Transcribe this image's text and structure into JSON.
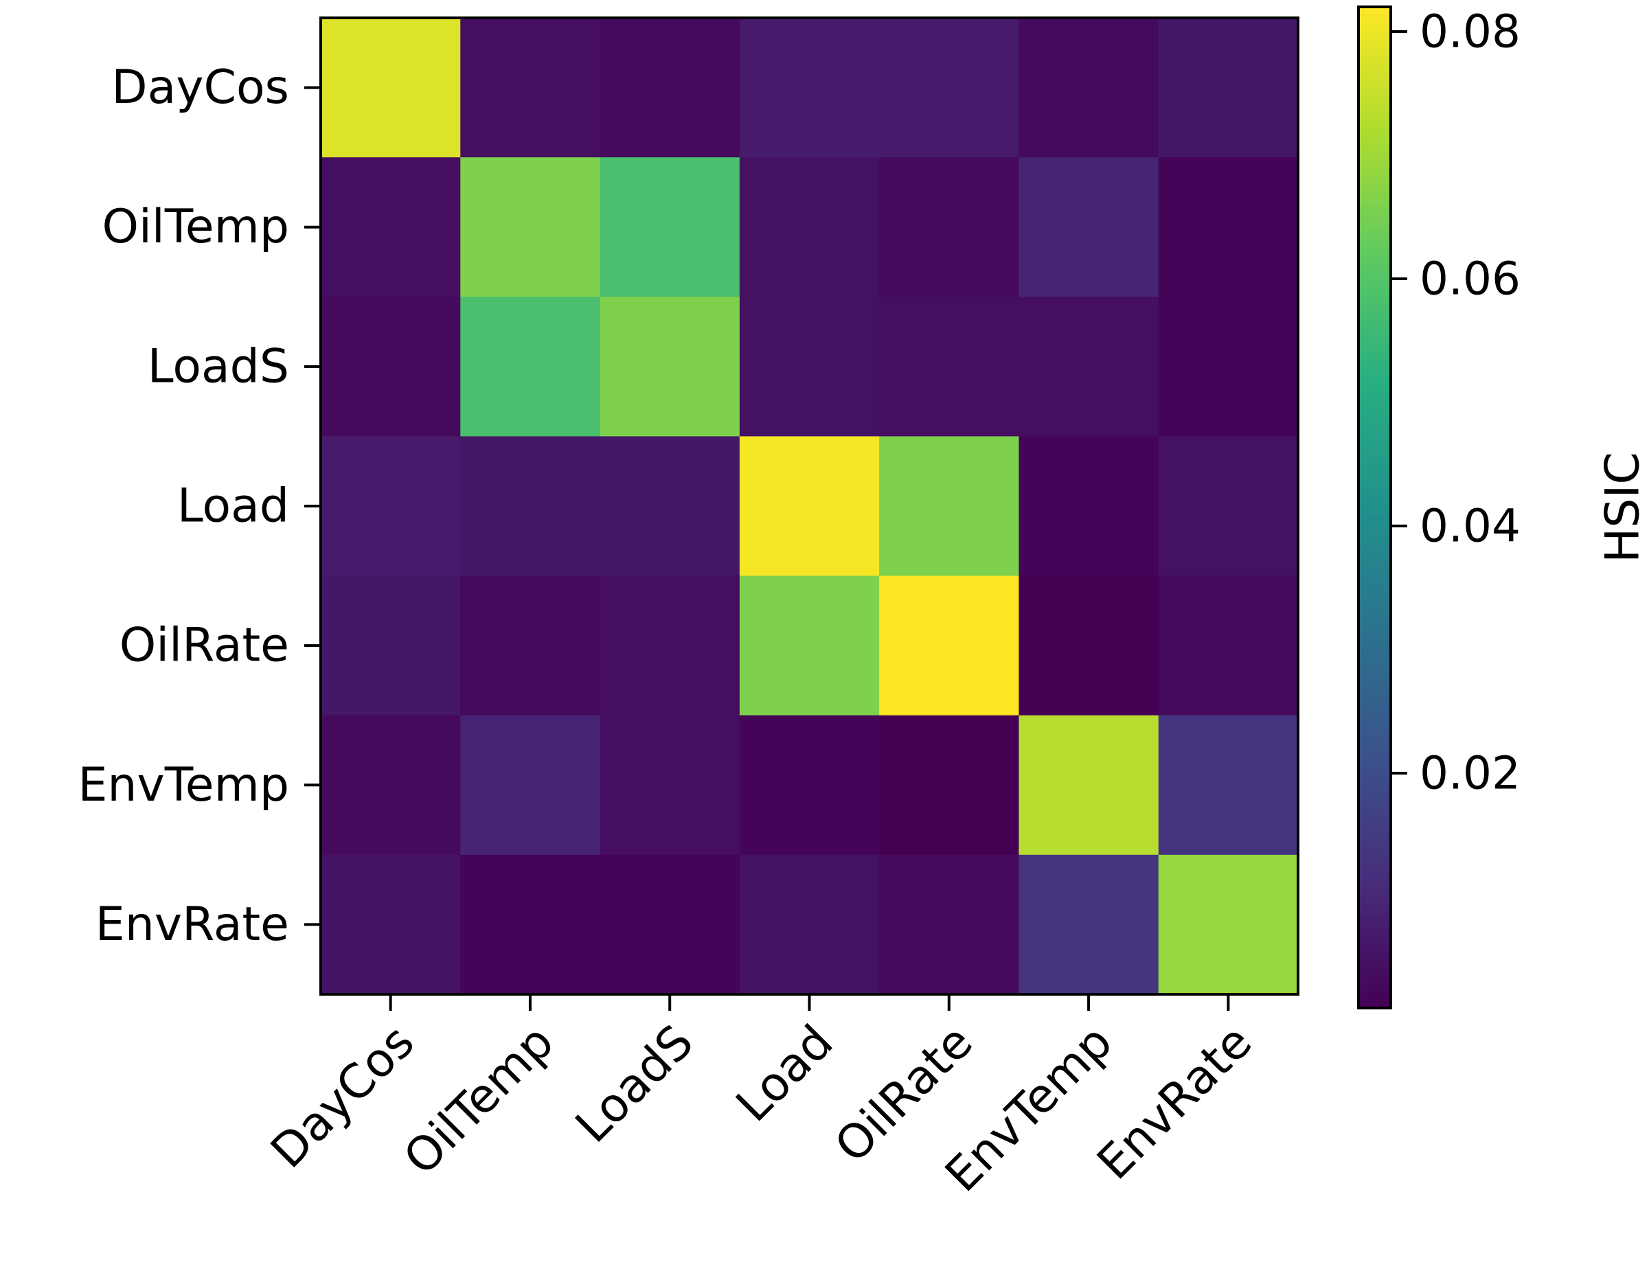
{
  "chart_data": {
    "type": "heatmap",
    "title": "",
    "xlabel": "",
    "ylabel": "",
    "x_categories": [
      "DayCos",
      "OilTemp",
      "LoadS",
      "Load",
      "OilRate",
      "EnvTemp",
      "EnvRate"
    ],
    "y_categories": [
      "DayCos",
      "OilTemp",
      "LoadS",
      "Load",
      "OilRate",
      "EnvTemp",
      "EnvRate"
    ],
    "values": [
      [
        0.078,
        0.004,
        0.003,
        0.007,
        0.007,
        0.003,
        0.006
      ],
      [
        0.004,
        0.066,
        0.058,
        0.005,
        0.003,
        0.009,
        0.002
      ],
      [
        0.003,
        0.058,
        0.066,
        0.005,
        0.004,
        0.004,
        0.002
      ],
      [
        0.007,
        0.006,
        0.006,
        0.081,
        0.066,
        0.002,
        0.005
      ],
      [
        0.006,
        0.003,
        0.004,
        0.066,
        0.082,
        0.001,
        0.003
      ],
      [
        0.003,
        0.009,
        0.004,
        0.002,
        0.001,
        0.073,
        0.013
      ],
      [
        0.005,
        0.002,
        0.002,
        0.005,
        0.003,
        0.013,
        0.069
      ]
    ],
    "colormap": "viridis",
    "vmin": 0.001,
    "vmax": 0.082,
    "colorbar": {
      "label": "HSIC",
      "ticks": [
        0.02,
        0.04,
        0.06,
        0.08
      ],
      "tick_labels": [
        "0.02",
        "0.04",
        "0.06",
        "0.08"
      ]
    }
  }
}
